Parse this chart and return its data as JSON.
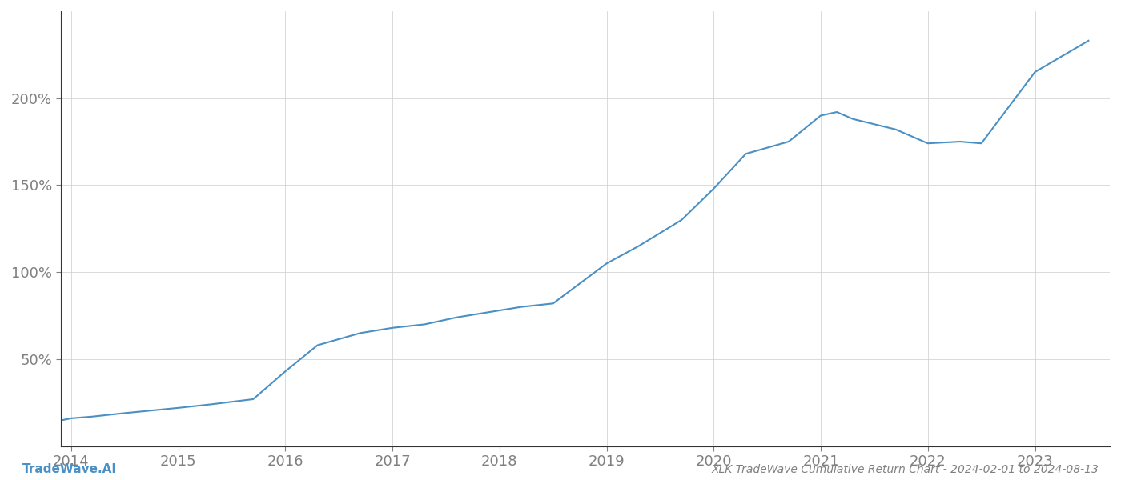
{
  "title": "XLK TradeWave Cumulative Return Chart - 2024-02-01 to 2024-08-13",
  "watermark": "TradeWave.AI",
  "line_color": "#4a90c4",
  "background_color": "#ffffff",
  "grid_color": "#cccccc",
  "text_color": "#808080",
  "years": [
    2014,
    2015,
    2016,
    2017,
    2018,
    2019,
    2020,
    2021,
    2022,
    2023
  ],
  "x_values": [
    2013.92,
    2014.0,
    2014.2,
    2014.5,
    2015.0,
    2015.3,
    2015.7,
    2016.0,
    2016.3,
    2016.7,
    2017.0,
    2017.3,
    2017.6,
    2018.0,
    2018.2,
    2018.5,
    2019.0,
    2019.3,
    2019.7,
    2020.0,
    2020.3,
    2020.7,
    2021.0,
    2021.15,
    2021.3,
    2021.7,
    2022.0,
    2022.3,
    2022.5,
    2023.0,
    2023.5
  ],
  "y_values": [
    15,
    16,
    17,
    19,
    22,
    24,
    27,
    43,
    58,
    65,
    68,
    70,
    74,
    78,
    80,
    82,
    105,
    115,
    130,
    148,
    168,
    175,
    190,
    192,
    188,
    182,
    174,
    175,
    174,
    215,
    233
  ],
  "yticks": [
    50,
    100,
    150,
    200
  ],
  "ytick_labels": [
    "50%",
    "100%",
    "150%",
    "200%"
  ],
  "xlim": [
    2013.9,
    2023.7
  ],
  "ylim": [
    0,
    250
  ],
  "title_fontsize": 10,
  "watermark_fontsize": 11,
  "tick_fontsize": 13,
  "line_width": 1.5
}
